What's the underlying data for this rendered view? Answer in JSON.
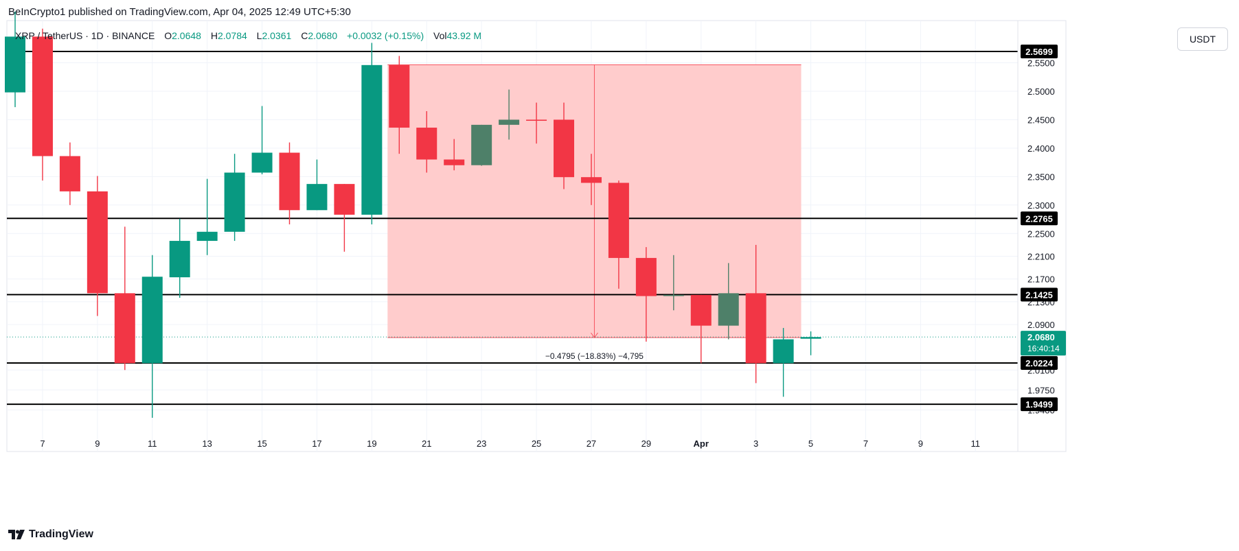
{
  "header": {
    "published_by": "BeInCrypto1 published on TradingView.com, Apr 04, 2025 12:49 UTC+5:30"
  },
  "legend": {
    "symbol": "XRP / TetherUS · 1D · BINANCE",
    "o_label": "O",
    "o_value": "2.0648",
    "h_label": "H",
    "h_value": "2.0784",
    "l_label": "L",
    "l_value": "2.0361",
    "c_label": "C",
    "c_value": "2.0680",
    "change": "+0.0032 (+0.15%)",
    "vol_label": "Vol",
    "vol_value": "43.92 M"
  },
  "currency": "USDT",
  "footer": {
    "brand": "TradingView"
  },
  "colors": {
    "up": "#089981",
    "up_dark": "#4e8069",
    "down": "#f23645",
    "zone": "#ffc9c9",
    "grid": "#f0f3fa",
    "level": "#000000"
  },
  "chart_data": {
    "type": "candlestick",
    "title": "XRP / TetherUS · 1D · BINANCE",
    "x_tick_labels": [
      "7",
      "9",
      "11",
      "13",
      "15",
      "17",
      "19",
      "21",
      "23",
      "25",
      "27",
      "29",
      "Apr",
      "3",
      "5",
      "7",
      "9",
      "11"
    ],
    "y_ticks": [
      "2.5500",
      "2.5000",
      "2.4500",
      "2.4000",
      "2.3500",
      "2.3000",
      "2.2500",
      "2.2100",
      "2.1700",
      "2.1300",
      "2.0900",
      "2.0100",
      "1.9750",
      "1.9400"
    ],
    "candles": [
      {
        "date": "Mar 6",
        "o": 2.498,
        "h": 2.64,
        "l": 2.472,
        "c": 2.596,
        "dir": "up"
      },
      {
        "date": "Mar 7",
        "o": 2.596,
        "h": 2.61,
        "l": 2.343,
        "c": 2.386,
        "dir": "down"
      },
      {
        "date": "Mar 8",
        "o": 2.386,
        "h": 2.41,
        "l": 2.3,
        "c": 2.324,
        "dir": "down"
      },
      {
        "date": "Mar 9",
        "o": 2.324,
        "h": 2.351,
        "l": 2.105,
        "c": 2.145,
        "dir": "down"
      },
      {
        "date": "Mar 10",
        "o": 2.145,
        "h": 2.262,
        "l": 2.01,
        "c": 2.022,
        "dir": "down"
      },
      {
        "date": "Mar 11",
        "o": 2.022,
        "h": 2.212,
        "l": 1.926,
        "c": 2.174,
        "dir": "up"
      },
      {
        "date": "Mar 12",
        "o": 2.173,
        "h": 2.276,
        "l": 2.137,
        "c": 2.237,
        "dir": "up"
      },
      {
        "date": "Mar 13",
        "o": 2.237,
        "h": 2.346,
        "l": 2.212,
        "c": 2.253,
        "dir": "up"
      },
      {
        "date": "Mar 14",
        "o": 2.253,
        "h": 2.39,
        "l": 2.237,
        "c": 2.357,
        "dir": "up"
      },
      {
        "date": "Mar 15",
        "o": 2.357,
        "h": 2.474,
        "l": 2.354,
        "c": 2.392,
        "dir": "up"
      },
      {
        "date": "Mar 16",
        "o": 2.392,
        "h": 2.41,
        "l": 2.266,
        "c": 2.291,
        "dir": "down"
      },
      {
        "date": "Mar 17",
        "o": 2.291,
        "h": 2.38,
        "l": 2.291,
        "c": 2.337,
        "dir": "up"
      },
      {
        "date": "Mar 18",
        "o": 2.337,
        "h": 2.337,
        "l": 2.218,
        "c": 2.283,
        "dir": "down"
      },
      {
        "date": "Mar 19",
        "o": 2.283,
        "h": 2.585,
        "l": 2.266,
        "c": 2.546,
        "dir": "up"
      },
      {
        "date": "Mar 20",
        "o": 2.546,
        "h": 2.562,
        "l": 2.39,
        "c": 2.436,
        "dir": "down"
      },
      {
        "date": "Mar 21",
        "o": 2.436,
        "h": 2.465,
        "l": 2.357,
        "c": 2.38,
        "dir": "down"
      },
      {
        "date": "Mar 22",
        "o": 2.38,
        "h": 2.416,
        "l": 2.361,
        "c": 2.37,
        "dir": "down"
      },
      {
        "date": "Mar 23",
        "o": 2.37,
        "h": 2.441,
        "l": 2.369,
        "c": 2.441,
        "dir": "up"
      },
      {
        "date": "Mar 24",
        "o": 2.441,
        "h": 2.503,
        "l": 2.415,
        "c": 2.45,
        "dir": "up"
      },
      {
        "date": "Mar 25",
        "o": 2.45,
        "h": 2.48,
        "l": 2.408,
        "c": 2.45,
        "dir": "down"
      },
      {
        "date": "Mar 26",
        "o": 2.45,
        "h": 2.48,
        "l": 2.328,
        "c": 2.349,
        "dir": "down"
      },
      {
        "date": "Mar 27",
        "o": 2.349,
        "h": 2.39,
        "l": 2.3,
        "c": 2.339,
        "dir": "down"
      },
      {
        "date": "Mar 28",
        "o": 2.339,
        "h": 2.343,
        "l": 2.153,
        "c": 2.207,
        "dir": "down"
      },
      {
        "date": "Mar 29",
        "o": 2.207,
        "h": 2.226,
        "l": 2.06,
        "c": 2.14,
        "dir": "down"
      },
      {
        "date": "Mar 30",
        "o": 2.14,
        "h": 2.212,
        "l": 2.115,
        "c": 2.142,
        "dir": "up"
      },
      {
        "date": "Mar 31",
        "o": 2.142,
        "h": 2.142,
        "l": 2.022,
        "c": 2.088,
        "dir": "down"
      },
      {
        "date": "Apr 1",
        "o": 2.088,
        "h": 2.198,
        "l": 2.064,
        "c": 2.145,
        "dir": "up"
      },
      {
        "date": "Apr 2",
        "o": 2.145,
        "h": 2.23,
        "l": 1.987,
        "c": 2.022,
        "dir": "down"
      },
      {
        "date": "Apr 3",
        "o": 2.022,
        "h": 2.084,
        "l": 1.963,
        "c": 2.064,
        "dir": "up"
      },
      {
        "date": "Apr 4",
        "o": 2.065,
        "h": 2.078,
        "l": 2.036,
        "c": 2.068,
        "dir": "up"
      }
    ],
    "levels": [
      {
        "value": 2.5699,
        "label": "2.5699"
      },
      {
        "value": 2.2765,
        "label": "2.2765"
      },
      {
        "value": 2.1425,
        "label": "2.1425"
      },
      {
        "value": 2.0224,
        "label": "2.0224"
      },
      {
        "value": 1.9499,
        "label": "1.9499"
      }
    ],
    "current_price": {
      "value": 2.068,
      "label": "2.0680",
      "countdown": "16:40:14"
    },
    "measure": {
      "from_date": "Mar 20",
      "to_date": "Apr 4",
      "top": 2.5465,
      "bottom": 2.067,
      "label": "−0.4795 (−18.83%) −4,795"
    }
  }
}
